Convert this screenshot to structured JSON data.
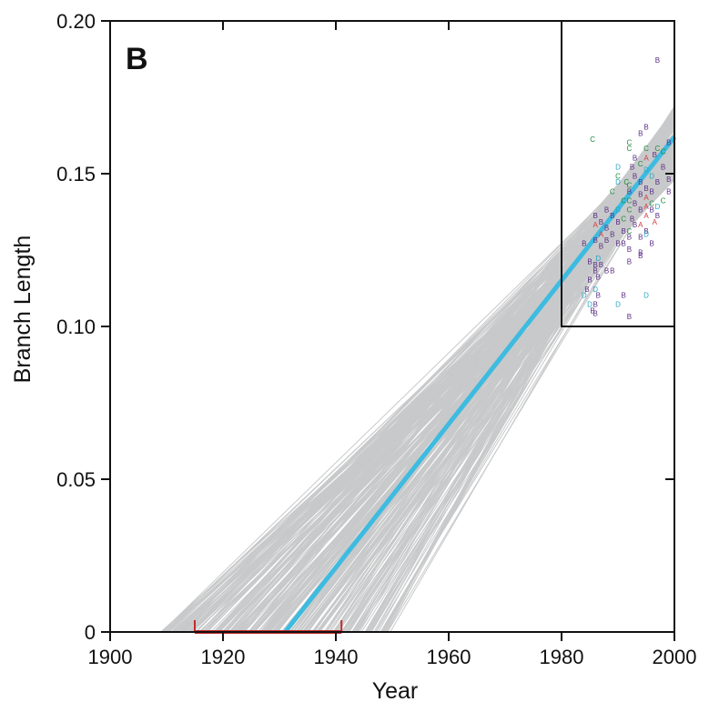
{
  "chart_data": {
    "type": "line",
    "panel_label": "B",
    "xlabel": "Year",
    "ylabel": "Branch Length",
    "xlim": [
      1900,
      2000
    ],
    "ylim": [
      0,
      0.2
    ],
    "x_ticks": [
      1900,
      1920,
      1940,
      1960,
      1980,
      2000
    ],
    "y_ticks": [
      0,
      0.05,
      0.1,
      0.15,
      0.2
    ],
    "y_tick_labels": [
      "0",
      "0.05",
      "0.10",
      "0.15",
      "0.20"
    ],
    "grid": false,
    "regression_line": {
      "x": [
        1931,
        2000
      ],
      "y": [
        0,
        0.162
      ],
      "color": "#3dbbe0"
    },
    "bootstrap_lines": {
      "count": 300,
      "x_intercept_range": [
        1909,
        1950
      ],
      "y_at_2000_range": [
        0.148,
        0.172
      ],
      "color": "#c8c9ca"
    },
    "root_date_interval": {
      "x": [
        1915,
        1941
      ],
      "y": 0,
      "color": "#c22a2a"
    },
    "inset_box": {
      "x": [
        1980,
        2000
      ],
      "y": [
        0.1,
        0.2
      ]
    },
    "point_series_colors": {
      "A": "#d23c3c",
      "B": "#5a2e86",
      "C": "#1a8a3c",
      "D": "#25a6c4"
    },
    "points": [
      {
        "label": "B",
        "x": 1997.0,
        "y": 0.187
      },
      {
        "label": "B",
        "x": 1995.0,
        "y": 0.165
      },
      {
        "label": "B",
        "x": 1994.0,
        "y": 0.163
      },
      {
        "label": "C",
        "x": 1985.5,
        "y": 0.161
      },
      {
        "label": "C",
        "x": 1992.0,
        "y": 0.16
      },
      {
        "label": "C",
        "x": 1992.0,
        "y": 0.158
      },
      {
        "label": "C",
        "x": 1995.0,
        "y": 0.158
      },
      {
        "label": "C",
        "x": 1997.0,
        "y": 0.158
      },
      {
        "label": "B",
        "x": 1999.0,
        "y": 0.16
      },
      {
        "label": "B",
        "x": 1993.0,
        "y": 0.155
      },
      {
        "label": "A",
        "x": 1995.0,
        "y": 0.155
      },
      {
        "label": "B",
        "x": 1996.5,
        "y": 0.156
      },
      {
        "label": "C",
        "x": 1998.0,
        "y": 0.157
      },
      {
        "label": "B",
        "x": 1992.5,
        "y": 0.152
      },
      {
        "label": "C",
        "x": 1994.0,
        "y": 0.153
      },
      {
        "label": "D",
        "x": 1990.0,
        "y": 0.152
      },
      {
        "label": "D",
        "x": 1995.0,
        "y": 0.151
      },
      {
        "label": "B",
        "x": 1998.0,
        "y": 0.152
      },
      {
        "label": "C",
        "x": 1990.0,
        "y": 0.149
      },
      {
        "label": "B",
        "x": 1993.0,
        "y": 0.149
      },
      {
        "label": "D",
        "x": 1996.0,
        "y": 0.149
      },
      {
        "label": "D",
        "x": 1990.0,
        "y": 0.147
      },
      {
        "label": "C",
        "x": 1991.5,
        "y": 0.147
      },
      {
        "label": "B",
        "x": 1994.0,
        "y": 0.147
      },
      {
        "label": "B",
        "x": 1997.0,
        "y": 0.147
      },
      {
        "label": "B",
        "x": 1999.0,
        "y": 0.148
      },
      {
        "label": "C",
        "x": 1992.0,
        "y": 0.146
      },
      {
        "label": "B",
        "x": 1995.0,
        "y": 0.145
      },
      {
        "label": "C",
        "x": 1989.0,
        "y": 0.144
      },
      {
        "label": "B",
        "x": 1992.0,
        "y": 0.144
      },
      {
        "label": "B",
        "x": 1994.0,
        "y": 0.143
      },
      {
        "label": "B",
        "x": 1996.0,
        "y": 0.144
      },
      {
        "label": "B",
        "x": 1999.0,
        "y": 0.144
      },
      {
        "label": "A",
        "x": 1995.0,
        "y": 0.142
      },
      {
        "label": "C",
        "x": 1991.0,
        "y": 0.141
      },
      {
        "label": "C",
        "x": 1992.0,
        "y": 0.141
      },
      {
        "label": "C",
        "x": 1998.0,
        "y": 0.141
      },
      {
        "label": "B",
        "x": 1993.0,
        "y": 0.14
      },
      {
        "label": "C",
        "x": 1996.0,
        "y": 0.14
      },
      {
        "label": "B",
        "x": 1988.0,
        "y": 0.138
      },
      {
        "label": "D",
        "x": 1990.0,
        "y": 0.138
      },
      {
        "label": "C",
        "x": 1992.0,
        "y": 0.138
      },
      {
        "label": "B",
        "x": 1994.0,
        "y": 0.138
      },
      {
        "label": "A",
        "x": 1995.0,
        "y": 0.139
      },
      {
        "label": "B",
        "x": 1996.0,
        "y": 0.138
      },
      {
        "label": "D",
        "x": 1997.0,
        "y": 0.139
      },
      {
        "label": "B",
        "x": 1986.0,
        "y": 0.136
      },
      {
        "label": "B",
        "x": 1989.0,
        "y": 0.136
      },
      {
        "label": "C",
        "x": 1991.0,
        "y": 0.135
      },
      {
        "label": "B",
        "x": 1992.5,
        "y": 0.135
      },
      {
        "label": "A",
        "x": 1995.0,
        "y": 0.136
      },
      {
        "label": "B",
        "x": 1997.0,
        "y": 0.136
      },
      {
        "label": "B",
        "x": 1987.0,
        "y": 0.134
      },
      {
        "label": "B",
        "x": 1990.0,
        "y": 0.134
      },
      {
        "label": "B",
        "x": 1993.0,
        "y": 0.133
      },
      {
        "label": "A",
        "x": 1994.0,
        "y": 0.133
      },
      {
        "label": "A",
        "x": 1996.5,
        "y": 0.134
      },
      {
        "label": "A",
        "x": 1986.0,
        "y": 0.133
      },
      {
        "label": "B",
        "x": 1988.0,
        "y": 0.132
      },
      {
        "label": "B",
        "x": 1991.0,
        "y": 0.131
      },
      {
        "label": "C",
        "x": 1992.0,
        "y": 0.131
      },
      {
        "label": "B",
        "x": 1995.0,
        "y": 0.131
      },
      {
        "label": "A",
        "x": 1987.0,
        "y": 0.13
      },
      {
        "label": "B",
        "x": 1989.0,
        "y": 0.13
      },
      {
        "label": "B",
        "x": 1992.0,
        "y": 0.129
      },
      {
        "label": "B",
        "x": 1994.0,
        "y": 0.129
      },
      {
        "label": "D",
        "x": 1995.0,
        "y": 0.13
      },
      {
        "label": "B",
        "x": 1986.0,
        "y": 0.128
      },
      {
        "label": "B",
        "x": 1988.0,
        "y": 0.128
      },
      {
        "label": "B",
        "x": 1990.0,
        "y": 0.127
      },
      {
        "label": "B",
        "x": 1991.0,
        "y": 0.127
      },
      {
        "label": "B",
        "x": 1996.0,
        "y": 0.127
      },
      {
        "label": "B",
        "x": 1984.0,
        "y": 0.127
      },
      {
        "label": "B",
        "x": 1987.0,
        "y": 0.126
      },
      {
        "label": "B",
        "x": 1992.0,
        "y": 0.125
      },
      {
        "label": "B",
        "x": 1994.0,
        "y": 0.124
      },
      {
        "label": "B",
        "x": 1994.0,
        "y": 0.123
      },
      {
        "label": "D",
        "x": 1986.5,
        "y": 0.122
      },
      {
        "label": "B",
        "x": 1992.0,
        "y": 0.121
      },
      {
        "label": "B",
        "x": 1985.0,
        "y": 0.121
      },
      {
        "label": "B",
        "x": 1986.0,
        "y": 0.12
      },
      {
        "label": "B",
        "x": 1987.0,
        "y": 0.12
      },
      {
        "label": "B",
        "x": 1986.0,
        "y": 0.118
      },
      {
        "label": "B",
        "x": 1986.5,
        "y": 0.116
      },
      {
        "label": "B",
        "x": 1988.0,
        "y": 0.118
      },
      {
        "label": "B",
        "x": 1989.0,
        "y": 0.118
      },
      {
        "label": "B",
        "x": 1985.0,
        "y": 0.115
      },
      {
        "label": "B",
        "x": 1984.5,
        "y": 0.112
      },
      {
        "label": "D",
        "x": 1986.0,
        "y": 0.112
      },
      {
        "label": "D",
        "x": 1984.0,
        "y": 0.11
      },
      {
        "label": "B",
        "x": 1986.5,
        "y": 0.11
      },
      {
        "label": "B",
        "x": 1991.0,
        "y": 0.11
      },
      {
        "label": "D",
        "x": 1995.0,
        "y": 0.11
      },
      {
        "label": "D",
        "x": 1985.0,
        "y": 0.107
      },
      {
        "label": "B",
        "x": 1986.0,
        "y": 0.107
      },
      {
        "label": "D",
        "x": 1990.0,
        "y": 0.107
      },
      {
        "label": "B",
        "x": 1985.5,
        "y": 0.105
      },
      {
        "label": "B",
        "x": 1986.0,
        "y": 0.104
      },
      {
        "label": "B",
        "x": 1992.0,
        "y": 0.103
      }
    ]
  }
}
